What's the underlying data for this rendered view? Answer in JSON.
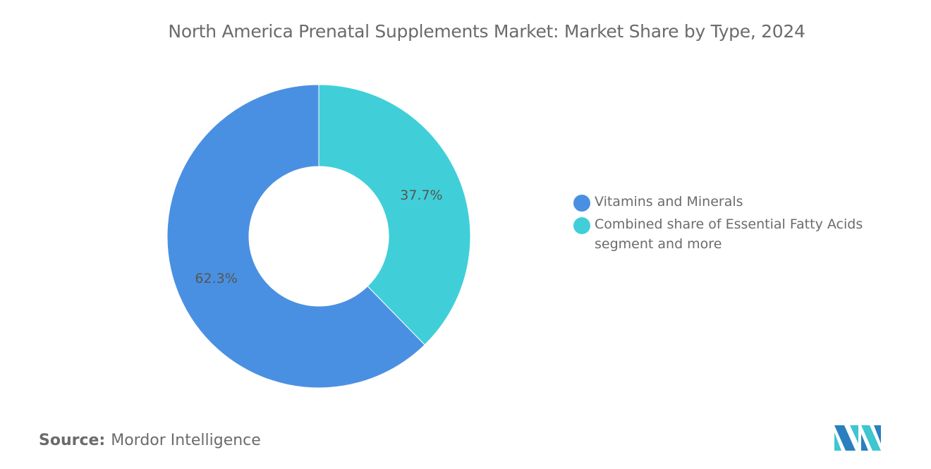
{
  "chart_data": {
    "type": "pie",
    "variant": "donut",
    "title": "North America Prenatal Supplements Market: Market Share by Type, 2024",
    "categories": [
      "Combined share of Essential Fatty Acids segment and more",
      "Vitamins and Minerals"
    ],
    "values": [
      37.7,
      62.3
    ],
    "data_labels": [
      "37.7%",
      "62.3%"
    ],
    "colors": [
      "#40cfd9",
      "#4a90e2"
    ],
    "legend": {
      "placement": "right",
      "entries": [
        {
          "label": "Vitamins and Minerals",
          "color": "#4a90e2"
        },
        {
          "label": "Combined share of Essential Fatty Acids segment and more",
          "color": "#40cfd9"
        }
      ]
    }
  },
  "source": {
    "label": "Source:",
    "value": "Mordor Intelligence"
  },
  "logo": {
    "text": "MI",
    "colors": [
      "#2a7fbf",
      "#3fc6cf"
    ]
  }
}
